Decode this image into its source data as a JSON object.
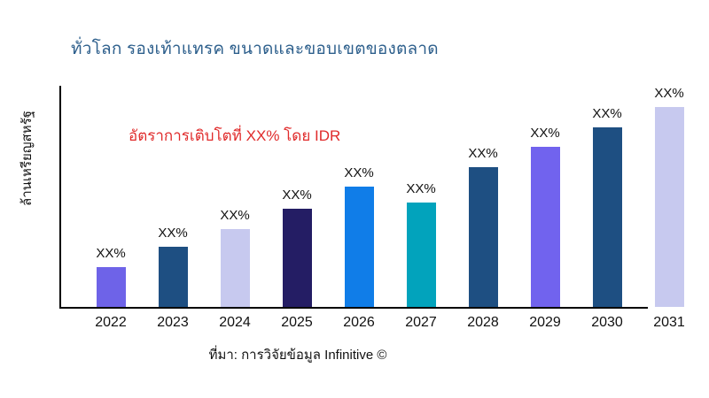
{
  "title": "ทั่วโลก รองเท้าแทรค ขนาดและขอบเขตของตลาด",
  "annotation": "อัตราการเติบโตที่ XX% โดย IDR",
  "source": "ที่มา: การวิจัยข้อมูล Infinitive ©",
  "colors": {
    "title_text": "#2d5f8c",
    "annotation_text": "#e02b2b",
    "axis": "#000000",
    "label_text": "#111111"
  },
  "chart_data": {
    "type": "bar",
    "title": "ทั่วโลก รองเท้าแทรค ขนาดและขอบเขตของตลาด",
    "xlabel": "",
    "ylabel": "ล้านเหรียญสหรัฐ",
    "categories": [
      "2022",
      "2023",
      "2024",
      "2025",
      "2026",
      "2027",
      "2028",
      "2029",
      "2030",
      "2031"
    ],
    "values": [
      0.2,
      0.3,
      0.39,
      0.49,
      0.6,
      0.52,
      0.7,
      0.8,
      0.9,
      1.0
    ],
    "value_labels": [
      "XX%",
      "XX%",
      "XX%",
      "XX%",
      "XX%",
      "XX%",
      "XX%",
      "XX%",
      "XX%",
      "XX%"
    ],
    "bar_colors": [
      "#6e63e8",
      "#1e4f82",
      "#c7c9ef",
      "#241d64",
      "#107de8",
      "#02a3bc",
      "#1e4f82",
      "#7163ee",
      "#1e4f82",
      "#c7c9ef"
    ],
    "annotation": "อัตราการเติบโตที่ XX% โดย IDR",
    "source": "ที่มา: การวิจัยข้อมูล Infinitive ©",
    "ylim": [
      0,
      1.05
    ],
    "grid": false,
    "legend": "none"
  }
}
